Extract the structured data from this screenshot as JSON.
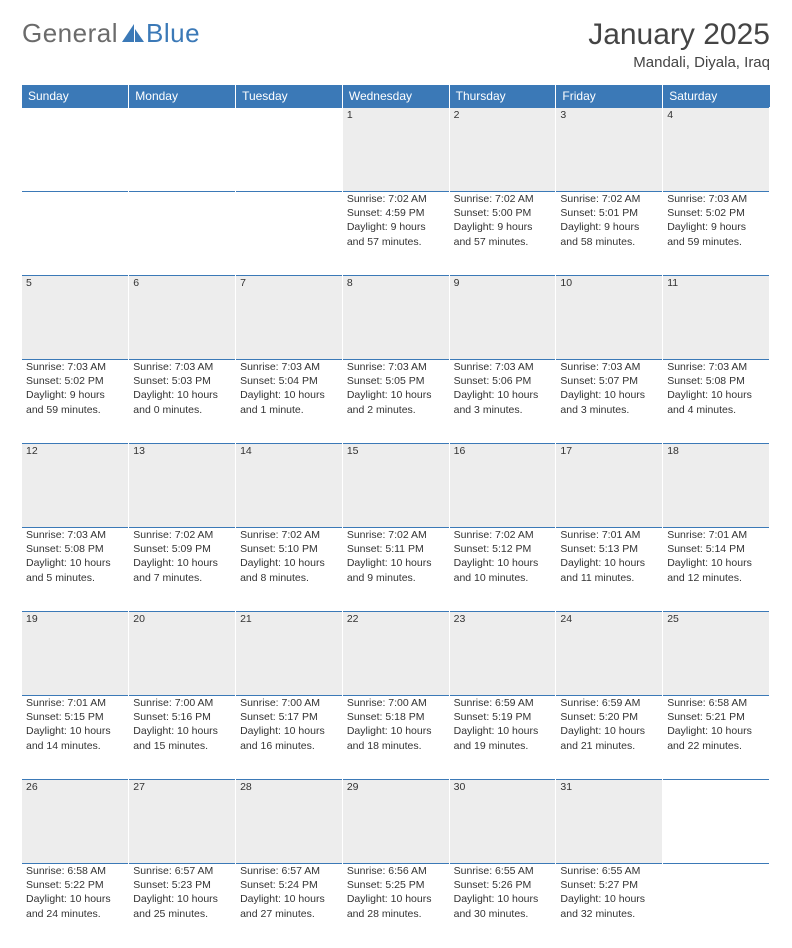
{
  "brand": {
    "part1": "General",
    "part2": "Blue"
  },
  "title": "January 2025",
  "location": "Mandali, Diyala, Iraq",
  "colors": {
    "header_bg": "#3b79b7",
    "daynum_bg": "#ededed",
    "text": "#333333",
    "brand_grey": "#6b6b6b",
    "brand_blue": "#3b79b7"
  },
  "weekdays": [
    "Sunday",
    "Monday",
    "Tuesday",
    "Wednesday",
    "Thursday",
    "Friday",
    "Saturday"
  ],
  "weeks": [
    [
      null,
      null,
      null,
      {
        "n": "1",
        "sr": "7:02 AM",
        "ss": "4:59 PM",
        "dl": "9 hours and 57 minutes."
      },
      {
        "n": "2",
        "sr": "7:02 AM",
        "ss": "5:00 PM",
        "dl": "9 hours and 57 minutes."
      },
      {
        "n": "3",
        "sr": "7:02 AM",
        "ss": "5:01 PM",
        "dl": "9 hours and 58 minutes."
      },
      {
        "n": "4",
        "sr": "7:03 AM",
        "ss": "5:02 PM",
        "dl": "9 hours and 59 minutes."
      }
    ],
    [
      {
        "n": "5",
        "sr": "7:03 AM",
        "ss": "5:02 PM",
        "dl": "9 hours and 59 minutes."
      },
      {
        "n": "6",
        "sr": "7:03 AM",
        "ss": "5:03 PM",
        "dl": "10 hours and 0 minutes."
      },
      {
        "n": "7",
        "sr": "7:03 AM",
        "ss": "5:04 PM",
        "dl": "10 hours and 1 minute."
      },
      {
        "n": "8",
        "sr": "7:03 AM",
        "ss": "5:05 PM",
        "dl": "10 hours and 2 minutes."
      },
      {
        "n": "9",
        "sr": "7:03 AM",
        "ss": "5:06 PM",
        "dl": "10 hours and 3 minutes."
      },
      {
        "n": "10",
        "sr": "7:03 AM",
        "ss": "5:07 PM",
        "dl": "10 hours and 3 minutes."
      },
      {
        "n": "11",
        "sr": "7:03 AM",
        "ss": "5:08 PM",
        "dl": "10 hours and 4 minutes."
      }
    ],
    [
      {
        "n": "12",
        "sr": "7:03 AM",
        "ss": "5:08 PM",
        "dl": "10 hours and 5 minutes."
      },
      {
        "n": "13",
        "sr": "7:02 AM",
        "ss": "5:09 PM",
        "dl": "10 hours and 7 minutes."
      },
      {
        "n": "14",
        "sr": "7:02 AM",
        "ss": "5:10 PM",
        "dl": "10 hours and 8 minutes."
      },
      {
        "n": "15",
        "sr": "7:02 AM",
        "ss": "5:11 PM",
        "dl": "10 hours and 9 minutes."
      },
      {
        "n": "16",
        "sr": "7:02 AM",
        "ss": "5:12 PM",
        "dl": "10 hours and 10 minutes."
      },
      {
        "n": "17",
        "sr": "7:01 AM",
        "ss": "5:13 PM",
        "dl": "10 hours and 11 minutes."
      },
      {
        "n": "18",
        "sr": "7:01 AM",
        "ss": "5:14 PM",
        "dl": "10 hours and 12 minutes."
      }
    ],
    [
      {
        "n": "19",
        "sr": "7:01 AM",
        "ss": "5:15 PM",
        "dl": "10 hours and 14 minutes."
      },
      {
        "n": "20",
        "sr": "7:00 AM",
        "ss": "5:16 PM",
        "dl": "10 hours and 15 minutes."
      },
      {
        "n": "21",
        "sr": "7:00 AM",
        "ss": "5:17 PM",
        "dl": "10 hours and 16 minutes."
      },
      {
        "n": "22",
        "sr": "7:00 AM",
        "ss": "5:18 PM",
        "dl": "10 hours and 18 minutes."
      },
      {
        "n": "23",
        "sr": "6:59 AM",
        "ss": "5:19 PM",
        "dl": "10 hours and 19 minutes."
      },
      {
        "n": "24",
        "sr": "6:59 AM",
        "ss": "5:20 PM",
        "dl": "10 hours and 21 minutes."
      },
      {
        "n": "25",
        "sr": "6:58 AM",
        "ss": "5:21 PM",
        "dl": "10 hours and 22 minutes."
      }
    ],
    [
      {
        "n": "26",
        "sr": "6:58 AM",
        "ss": "5:22 PM",
        "dl": "10 hours and 24 minutes."
      },
      {
        "n": "27",
        "sr": "6:57 AM",
        "ss": "5:23 PM",
        "dl": "10 hours and 25 minutes."
      },
      {
        "n": "28",
        "sr": "6:57 AM",
        "ss": "5:24 PM",
        "dl": "10 hours and 27 minutes."
      },
      {
        "n": "29",
        "sr": "6:56 AM",
        "ss": "5:25 PM",
        "dl": "10 hours and 28 minutes."
      },
      {
        "n": "30",
        "sr": "6:55 AM",
        "ss": "5:26 PM",
        "dl": "10 hours and 30 minutes."
      },
      {
        "n": "31",
        "sr": "6:55 AM",
        "ss": "5:27 PM",
        "dl": "10 hours and 32 minutes."
      },
      null
    ]
  ],
  "labels": {
    "sunrise": "Sunrise:",
    "sunset": "Sunset:",
    "daylight": "Daylight:"
  }
}
